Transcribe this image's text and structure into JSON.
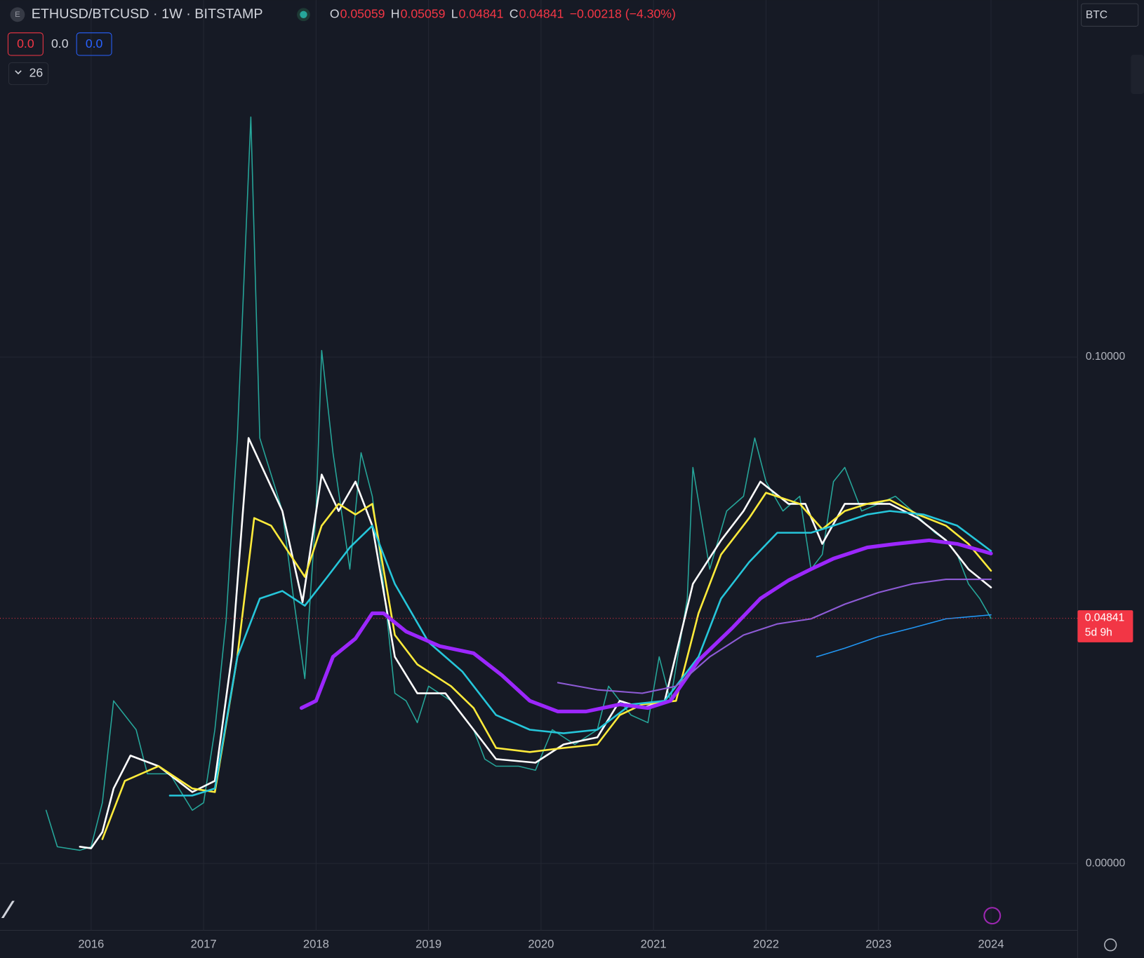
{
  "header": {
    "symbol": "ETHUSD/BTCUSD · 1W · BITSTAMP",
    "icon": "E",
    "ohlc": [
      {
        "k": "O",
        "v": "0.05059"
      },
      {
        "k": "H",
        "v": "0.05059"
      },
      {
        "k": "L",
        "v": "0.04841"
      },
      {
        "k": "C",
        "v": "0.04841"
      }
    ],
    "change": "−0.00218 (−4.30%)",
    "indicators": [
      "0.0",
      "0.0",
      "0.0"
    ],
    "collapsed": "26",
    "currency": "BTC"
  },
  "chart_data": {
    "type": "line",
    "xlim": [
      2015.19,
      2024.77
    ],
    "xticks": [
      2016,
      2017,
      2018,
      2019,
      2020,
      2021,
      2022,
      2023,
      2024
    ],
    "ylim": [
      -0.0132,
      0.1705
    ],
    "yticks": [
      {
        "value": 0.1,
        "label": "0.10000"
      },
      {
        "value": 0,
        "label": "0.00000"
      }
    ],
    "grid": true,
    "log_scale": false,
    "last_price": 0.04841,
    "last_price_label": "0.04841",
    "countdown": "5d 9h",
    "series": [
      {
        "color": "#26a69a",
        "width": 1.5,
        "x": [
          2015.6,
          2015.7,
          2015.9,
          2016.0,
          2016.1,
          2016.2,
          2016.4,
          2016.5,
          2016.7,
          2016.9,
          2017.0,
          2017.1,
          2017.2,
          2017.3,
          2017.42,
          2017.5,
          2017.6,
          2017.7,
          2017.8,
          2017.9,
          2018.0,
          2018.05,
          2018.15,
          2018.3,
          2018.4,
          2018.5,
          2018.6,
          2018.7,
          2018.8,
          2018.9,
          2019.0,
          2019.2,
          2019.4,
          2019.5,
          2019.6,
          2019.8,
          2019.95,
          2020.1,
          2020.3,
          2020.5,
          2020.6,
          2020.7,
          2020.8,
          2020.95,
          2021.05,
          2021.15,
          2021.3,
          2021.35,
          2021.5,
          2021.65,
          2021.8,
          2021.9,
          2022.0,
          2022.15,
          2022.3,
          2022.4,
          2022.5,
          2022.6,
          2022.7,
          2022.85,
          2023.0,
          2023.15,
          2023.3,
          2023.5,
          2023.6,
          2023.7,
          2023.8,
          2023.9,
          2024.0
        ],
        "values": [
          0.0105,
          0.0033,
          0.0026,
          0.0033,
          0.012,
          0.0321,
          0.0264,
          0.0177,
          0.0177,
          0.0105,
          0.012,
          0.0264,
          0.048,
          0.084,
          0.1474,
          0.084,
          0.0768,
          0.0696,
          0.0523,
          0.0365,
          0.0696,
          0.1013,
          0.0811,
          0.0581,
          0.0811,
          0.0725,
          0.0552,
          0.0336,
          0.0321,
          0.0278,
          0.035,
          0.0321,
          0.0264,
          0.0206,
          0.0192,
          0.0192,
          0.0184,
          0.0264,
          0.0235,
          0.0264,
          0.035,
          0.0321,
          0.0293,
          0.0278,
          0.0408,
          0.0321,
          0.0523,
          0.0782,
          0.0581,
          0.0696,
          0.0725,
          0.084,
          0.0754,
          0.0696,
          0.0725,
          0.0581,
          0.061,
          0.0754,
          0.0782,
          0.0696,
          0.071,
          0.0725,
          0.0696,
          0.0653,
          0.0638,
          0.061,
          0.0552,
          0.0523,
          0.04841
        ]
      },
      {
        "color": "#ffffff",
        "width": 2.5,
        "x": [
          2015.9,
          2016.0,
          2016.1,
          2016.2,
          2016.35,
          2016.6,
          2016.9,
          2017.1,
          2017.25,
          2017.4,
          2017.55,
          2017.7,
          2017.88,
          2018.05,
          2018.2,
          2018.35,
          2018.5,
          2018.7,
          2018.9,
          2019.15,
          2019.4,
          2019.6,
          2019.95,
          2020.2,
          2020.5,
          2020.7,
          2020.9,
          2021.1,
          2021.35,
          2021.6,
          2021.8,
          2021.95,
          2022.2,
          2022.35,
          2022.5,
          2022.7,
          2022.9,
          2023.1,
          2023.35,
          2023.6,
          2023.8,
          2024.0
        ],
        "values": [
          0.0033,
          0.003,
          0.0062,
          0.0148,
          0.0213,
          0.0192,
          0.0141,
          0.0163,
          0.0408,
          0.084,
          0.0768,
          0.0696,
          0.0516,
          0.0768,
          0.0696,
          0.0754,
          0.0667,
          0.0408,
          0.0336,
          0.0336,
          0.0264,
          0.0206,
          0.0199,
          0.0235,
          0.0249,
          0.0321,
          0.0307,
          0.0321,
          0.0552,
          0.0638,
          0.0696,
          0.0754,
          0.071,
          0.071,
          0.0631,
          0.071,
          0.071,
          0.071,
          0.0682,
          0.0638,
          0.0581,
          0.0545
        ]
      },
      {
        "color": "#ffeb3b",
        "width": 2.5,
        "x": [
          2016.1,
          2016.3,
          2016.6,
          2016.9,
          2017.1,
          2017.3,
          2017.45,
          2017.6,
          2017.9,
          2018.05,
          2018.2,
          2018.35,
          2018.5,
          2018.7,
          2018.9,
          2019.2,
          2019.4,
          2019.6,
          2019.9,
          2020.2,
          2020.5,
          2020.7,
          2020.9,
          2021.2,
          2021.4,
          2021.6,
          2021.85,
          2022.0,
          2022.3,
          2022.5,
          2022.7,
          2022.9,
          2023.1,
          2023.35,
          2023.6,
          2023.8,
          2024.0
        ],
        "values": [
          0.0048,
          0.0163,
          0.0192,
          0.0148,
          0.0141,
          0.0408,
          0.0682,
          0.0667,
          0.0566,
          0.0667,
          0.071,
          0.0689,
          0.071,
          0.0451,
          0.0393,
          0.035,
          0.0307,
          0.0228,
          0.022,
          0.0228,
          0.0235,
          0.0293,
          0.0314,
          0.0321,
          0.0494,
          0.061,
          0.0682,
          0.0732,
          0.071,
          0.066,
          0.0696,
          0.071,
          0.0718,
          0.0689,
          0.0667,
          0.0631,
          0.0578
        ]
      },
      {
        "color": "#26c6da",
        "width": 2.5,
        "x": [
          2016.7,
          2016.9,
          2017.1,
          2017.3,
          2017.5,
          2017.7,
          2017.9,
          2018.1,
          2018.3,
          2018.5,
          2018.7,
          2019.0,
          2019.3,
          2019.6,
          2019.9,
          2020.2,
          2020.5,
          2020.8,
          2021.1,
          2021.4,
          2021.6,
          2021.85,
          2022.1,
          2022.4,
          2022.6,
          2022.9,
          2023.1,
          2023.4,
          2023.7,
          2024.0
        ],
        "values": [
          0.0134,
          0.0134,
          0.0148,
          0.0408,
          0.0523,
          0.0538,
          0.0509,
          0.0566,
          0.0624,
          0.0667,
          0.0552,
          0.0437,
          0.0379,
          0.0293,
          0.0264,
          0.0257,
          0.0264,
          0.0314,
          0.0321,
          0.0408,
          0.0523,
          0.0595,
          0.0653,
          0.0653,
          0.0667,
          0.0689,
          0.0696,
          0.0689,
          0.0667,
          0.0617
        ]
      },
      {
        "color": "#9c27ff",
        "width": 5,
        "x": [
          2017.87,
          2018.0,
          2018.15,
          2018.35,
          2018.5,
          2018.6,
          2018.8,
          2019.1,
          2019.4,
          2019.65,
          2019.9,
          2020.15,
          2020.4,
          2020.7,
          2020.95,
          2021.15,
          2021.4,
          2021.7,
          2021.95,
          2022.2,
          2022.4,
          2022.6,
          2022.9,
          2023.15,
          2023.45,
          2023.7,
          2024.0
        ],
        "values": [
          0.0307,
          0.0321,
          0.0408,
          0.0444,
          0.0494,
          0.0494,
          0.0458,
          0.0429,
          0.0415,
          0.0372,
          0.0321,
          0.03,
          0.03,
          0.0314,
          0.0307,
          0.0321,
          0.0401,
          0.0465,
          0.0523,
          0.0559,
          0.0581,
          0.0602,
          0.0624,
          0.0631,
          0.0638,
          0.0631,
          0.0612
        ]
      },
      {
        "color": "#8e5bd6",
        "width": 2,
        "x": [
          2020.15,
          2020.5,
          2020.9,
          2021.2,
          2021.5,
          2021.8,
          2022.1,
          2022.4,
          2022.7,
          2023.0,
          2023.3,
          2023.6,
          2024.0
        ],
        "values": [
          0.0357,
          0.0343,
          0.0336,
          0.035,
          0.0408,
          0.0451,
          0.0473,
          0.0483,
          0.0512,
          0.0535,
          0.0552,
          0.0561,
          0.0561
        ]
      },
      {
        "color": "#2196f3",
        "width": 1.5,
        "x": [
          2022.45,
          2022.7,
          2023.0,
          2023.3,
          2023.6,
          2024.0
        ],
        "values": [
          0.0408,
          0.0425,
          0.0448,
          0.0465,
          0.0483,
          0.0491
        ]
      }
    ]
  }
}
